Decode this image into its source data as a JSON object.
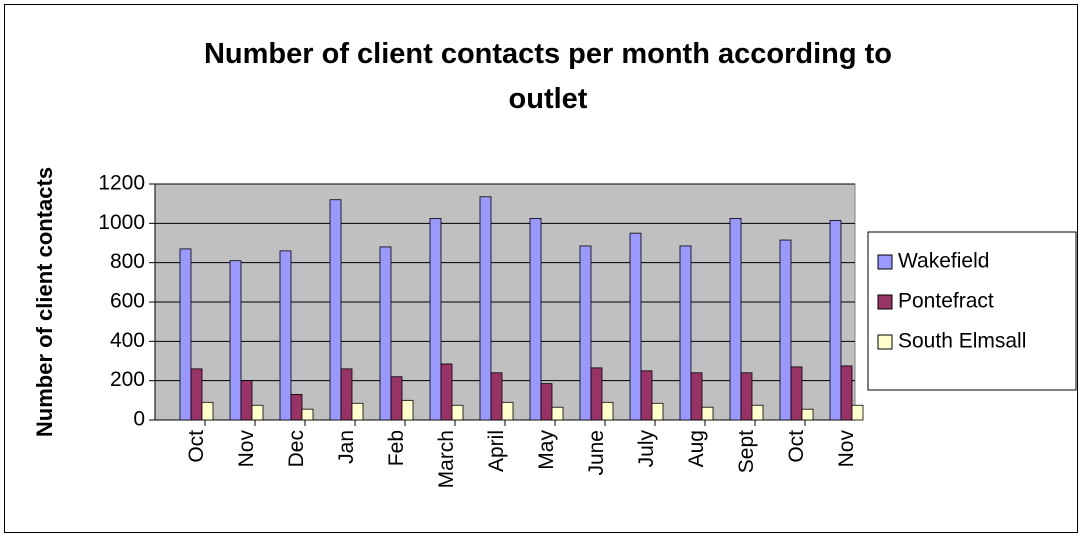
{
  "chart_data": {
    "type": "bar",
    "title": "Number of client contacts per month according to outlet",
    "y_label": "Number of client contacts",
    "categories": [
      "Oct",
      "Nov",
      "Dec",
      "Jan",
      "Feb",
      "March",
      "April",
      "May",
      "June",
      "July",
      "Aug",
      "Sept",
      "Oct",
      "Nov"
    ],
    "series": [
      {
        "name": "Wakefield",
        "color": "#9999ff",
        "values": [
          870,
          810,
          860,
          1120,
          880,
          1025,
          1135,
          1025,
          885,
          950,
          885,
          1025,
          915,
          1015
        ]
      },
      {
        "name": "Pontefract",
        "color": "#993366",
        "values": [
          260,
          200,
          130,
          260,
          220,
          285,
          240,
          185,
          265,
          250,
          240,
          240,
          270,
          275
        ]
      },
      {
        "name": "South Elmsall",
        "color": "#ffffcc",
        "values": [
          90,
          75,
          55,
          85,
          100,
          75,
          90,
          65,
          90,
          85,
          65,
          75,
          55,
          75
        ]
      }
    ],
    "ylim": [
      0,
      1200
    ],
    "yticks": [
      0,
      200,
      400,
      600,
      800,
      1000,
      1200
    ],
    "grid": true,
    "legend": "right",
    "plot_background": "#c0c0c0"
  }
}
